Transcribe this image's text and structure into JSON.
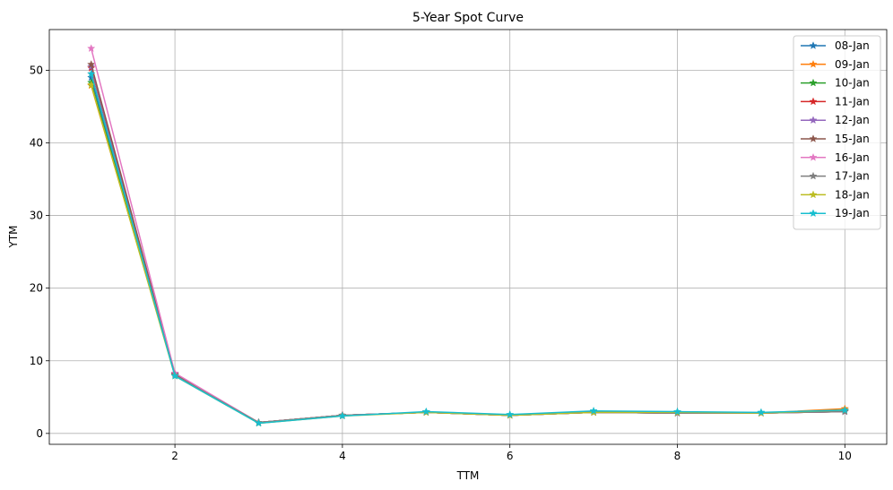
{
  "chart_data": {
    "type": "line",
    "title": "5-Year Spot Curve",
    "xlabel": "TTM",
    "ylabel": "YTM",
    "xlim": [
      0.5,
      10.5
    ],
    "ylim": [
      -1.5,
      55.6
    ],
    "xticks": [
      2,
      4,
      6,
      8,
      10
    ],
    "yticks": [
      0,
      10,
      20,
      30,
      40,
      50
    ],
    "grid": true,
    "legend_position": "top-right",
    "marker": "star",
    "x": [
      1,
      2,
      3,
      4,
      5,
      6,
      7,
      8,
      9,
      10
    ],
    "series": [
      {
        "name": "08-Jan",
        "color": "#1f77b4",
        "values": [
          49.0,
          8.0,
          1.5,
          2.5,
          2.9,
          2.5,
          2.9,
          2.8,
          2.8,
          3.0
        ]
      },
      {
        "name": "09-Jan",
        "color": "#ff7f0e",
        "values": [
          47.9,
          8.1,
          1.5,
          2.5,
          2.9,
          2.5,
          3.0,
          2.9,
          2.8,
          3.4
        ]
      },
      {
        "name": "10-Jan",
        "color": "#2ca02c",
        "values": [
          48.3,
          8.0,
          1.5,
          2.5,
          2.9,
          2.5,
          2.9,
          2.8,
          2.8,
          3.1
        ]
      },
      {
        "name": "11-Jan",
        "color": "#d62728",
        "values": [
          50.3,
          8.1,
          1.5,
          2.5,
          2.9,
          2.5,
          2.9,
          2.8,
          2.8,
          3.0
        ]
      },
      {
        "name": "12-Jan",
        "color": "#9467bd",
        "values": [
          50.5,
          8.1,
          1.5,
          2.5,
          2.9,
          2.5,
          2.9,
          2.8,
          2.8,
          3.0
        ]
      },
      {
        "name": "15-Jan",
        "color": "#8c564b",
        "values": [
          50.8,
          8.2,
          1.5,
          2.5,
          2.9,
          2.5,
          2.9,
          2.8,
          2.8,
          3.0
        ]
      },
      {
        "name": "16-Jan",
        "color": "#e377c2",
        "values": [
          53.0,
          8.3,
          1.5,
          2.5,
          2.9,
          2.5,
          2.9,
          2.8,
          2.8,
          3.0
        ]
      },
      {
        "name": "17-Jan",
        "color": "#7f7f7f",
        "values": [
          49.5,
          8.0,
          1.5,
          2.5,
          2.9,
          2.5,
          2.9,
          2.8,
          2.8,
          3.0
        ]
      },
      {
        "name": "18-Jan",
        "color": "#bcbd22",
        "values": [
          48.0,
          7.9,
          1.4,
          2.4,
          2.9,
          2.5,
          2.9,
          2.9,
          2.8,
          3.2
        ]
      },
      {
        "name": "19-Jan",
        "color": "#17becf",
        "values": [
          49.5,
          7.9,
          1.4,
          2.4,
          3.0,
          2.6,
          3.1,
          3.0,
          2.9,
          3.2
        ]
      }
    ]
  }
}
